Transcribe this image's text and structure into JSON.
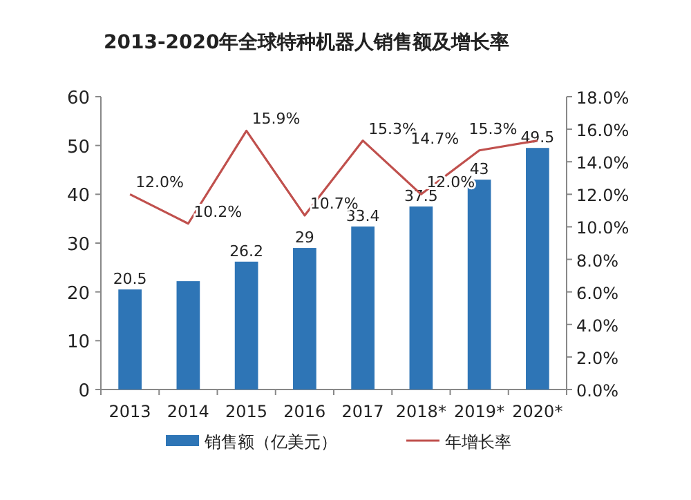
{
  "chart_data": {
    "type": "bar",
    "title": "2013-2020年全球特种机器人销售额及增长率",
    "categories": [
      "2013",
      "2014",
      "2015",
      "2016",
      "2017",
      "2018*",
      "2019*",
      "2020*"
    ],
    "series": [
      {
        "name": "销售额（亿美元）",
        "color": "#2e75b6",
        "values": [
          20.5,
          22.2,
          26.2,
          29,
          33.4,
          37.5,
          43,
          49.5
        ],
        "value_labels": [
          "20.5",
          null,
          "26.2",
          "29",
          "33.4",
          "37.5",
          "43",
          "49.5"
        ]
      },
      {
        "name": "年增长率",
        "type": "line",
        "axis": "y2",
        "color": "#c0504d",
        "values": [
          12.0,
          10.2,
          15.9,
          10.7,
          15.3,
          12.0,
          14.7,
          15.3
        ],
        "value_labels": [
          "12.0%",
          "10.2%",
          "15.9%",
          "10.7%",
          "15.3%",
          "12.0%",
          "14.7%",
          "15.3%"
        ]
      }
    ],
    "ylim": [
      0,
      60
    ],
    "yticks": [
      0,
      10,
      20,
      30,
      40,
      50,
      60
    ],
    "y2lim": [
      0,
      18
    ],
    "y2ticks": [
      {
        "value": 0,
        "label": "0.0%"
      },
      {
        "value": 2,
        "label": "2.0%"
      },
      {
        "value": 4,
        "label": "4.0%"
      },
      {
        "value": 6,
        "label": "6.0%"
      },
      {
        "value": 8,
        "label": "8.0%"
      },
      {
        "value": 10,
        "label": "10.0%"
      },
      {
        "value": 12,
        "label": "12.0%"
      },
      {
        "value": 14,
        "label": "14.0%"
      },
      {
        "value": 16,
        "label": "16.0%"
      },
      {
        "value": 18,
        "label": "18.0%"
      }
    ],
    "legend": "bottom",
    "grid": false,
    "marker": "none",
    "line_style": "solid"
  }
}
